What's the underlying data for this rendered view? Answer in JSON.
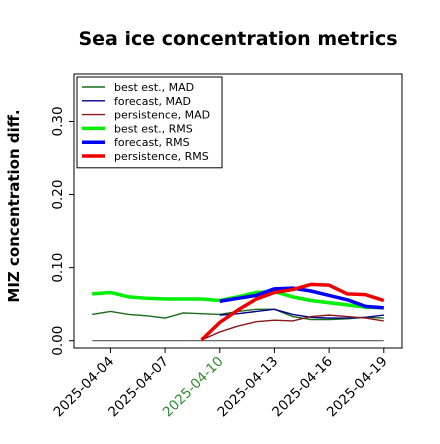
{
  "chart_data": {
    "type": "line",
    "title": "Sea ice concentration metrics",
    "xlabel": "",
    "ylabel": "MIZ concentration diff.",
    "x": [
      "2025-04-03",
      "2025-04-04",
      "2025-04-05",
      "2025-04-06",
      "2025-04-07",
      "2025-04-08",
      "2025-04-09",
      "2025-04-10",
      "2025-04-11",
      "2025-04-12",
      "2025-04-13",
      "2025-04-14",
      "2025-04-15",
      "2025-04-16",
      "2025-04-17",
      "2025-04-18",
      "2025-04-19"
    ],
    "x_ticks": [
      "2025-04-04",
      "2025-04-07",
      "2025-04-10",
      "2025-04-13",
      "2025-04-16",
      "2025-04-19"
    ],
    "x_tick_colors": [
      "#000000",
      "#000000",
      "#2e8b2e",
      "#000000",
      "#000000",
      "#000000"
    ],
    "xlim": [
      "2025-04-02",
      "2025-04-20"
    ],
    "ylim": [
      -0.01,
      0.365
    ],
    "y_ticks": [
      0.0,
      0.1,
      0.2,
      0.3
    ],
    "y_tick_labels": [
      "0.00",
      "0.10",
      "0.20",
      "0.30"
    ],
    "grid": false,
    "legend_position": "upper-left",
    "series": [
      {
        "name": "best est., MAD",
        "color": "#1a6b1a",
        "width": "thin",
        "values": [
          0.036,
          0.04,
          0.036,
          0.034,
          0.031,
          0.038,
          0.037,
          0.036,
          0.04,
          0.043,
          0.043,
          0.033,
          0.029,
          0.029,
          0.03,
          0.032,
          0.031
        ]
      },
      {
        "name": "forecast,  MAD",
        "color": "#00008b",
        "width": "thin",
        "values": [
          null,
          null,
          null,
          null,
          null,
          null,
          null,
          0.035,
          0.037,
          0.04,
          0.043,
          0.036,
          0.032,
          0.031,
          0.031,
          0.032,
          0.035
        ]
      },
      {
        "name": "persistence, MAD",
        "color": "#8b1a1a",
        "width": "thin",
        "values": [
          null,
          null,
          null,
          null,
          null,
          null,
          0.001,
          0.012,
          0.02,
          0.026,
          0.028,
          0.027,
          0.033,
          0.035,
          0.033,
          0.031,
          0.027
        ]
      },
      {
        "name": "best est., RMS",
        "color": "#00ee00",
        "width": "thick",
        "values": [
          0.064,
          0.066,
          0.06,
          0.058,
          0.057,
          0.057,
          0.057,
          0.055,
          0.06,
          0.066,
          0.067,
          0.06,
          0.055,
          0.052,
          0.049,
          0.046,
          0.045
        ]
      },
      {
        "name": "forecast,  RMS",
        "color": "#0000ff",
        "width": "thick",
        "values": [
          null,
          null,
          null,
          null,
          null,
          null,
          null,
          0.054,
          0.058,
          0.062,
          0.071,
          0.072,
          0.068,
          0.062,
          0.056,
          0.047,
          0.045
        ]
      },
      {
        "name": "persistence, RMS",
        "color": "#ee0000",
        "width": "thick",
        "values": [
          null,
          null,
          null,
          null,
          null,
          null,
          0.001,
          0.025,
          0.042,
          0.057,
          0.066,
          0.07,
          0.077,
          0.076,
          0.064,
          0.063,
          0.055
        ]
      }
    ],
    "reference_line": {
      "y": 0.0,
      "from": "2025-04-03",
      "to": "2025-04-19",
      "color": "#555555"
    }
  }
}
